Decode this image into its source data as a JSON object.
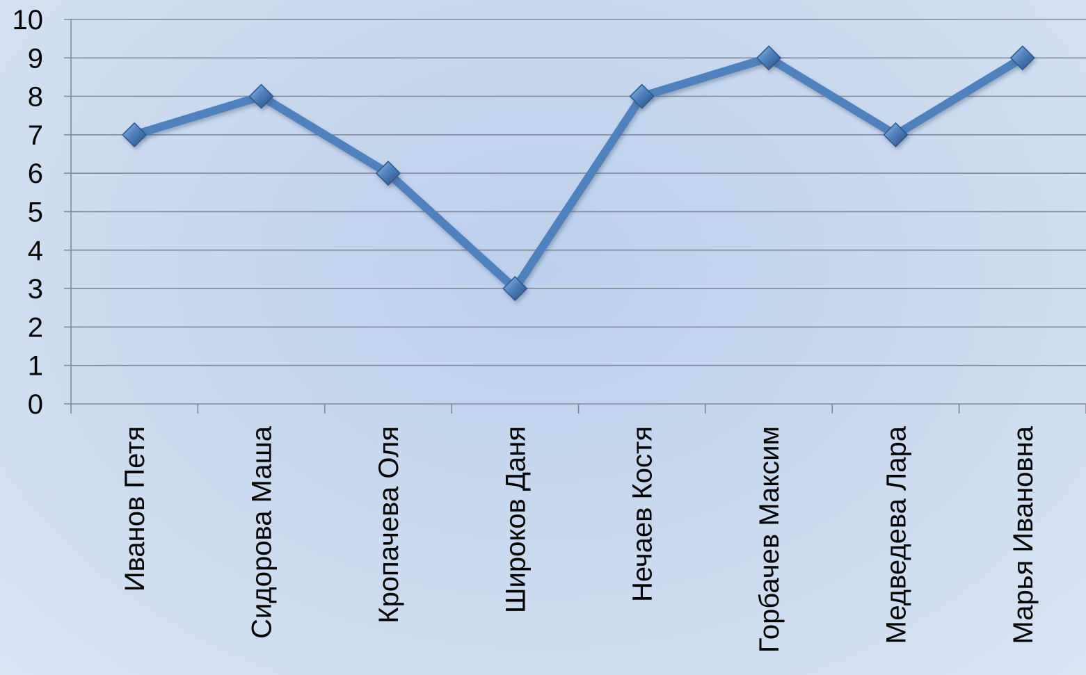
{
  "chart_data": {
    "type": "line",
    "title": "",
    "xlabel": "",
    "ylabel": "",
    "categories": [
      "Иванов Петя",
      "Сидорова Маша",
      "Кропачева Оля",
      "Широков Даня",
      "Нечаев Костя",
      "Горбачев Максим",
      "Медведева Лара",
      "Марья Ивановна"
    ],
    "series": [
      {
        "values": [
          7,
          8,
          6,
          3,
          8,
          9,
          7,
          9
        ],
        "color": "#4f81bd",
        "marker": "diamond"
      }
    ],
    "ylim": [
      0,
      10
    ],
    "yticks": [
      "0",
      "1",
      "2",
      "3",
      "4",
      "5",
      "6",
      "7",
      "8",
      "9",
      "10"
    ],
    "grid": true,
    "legend": "none"
  }
}
